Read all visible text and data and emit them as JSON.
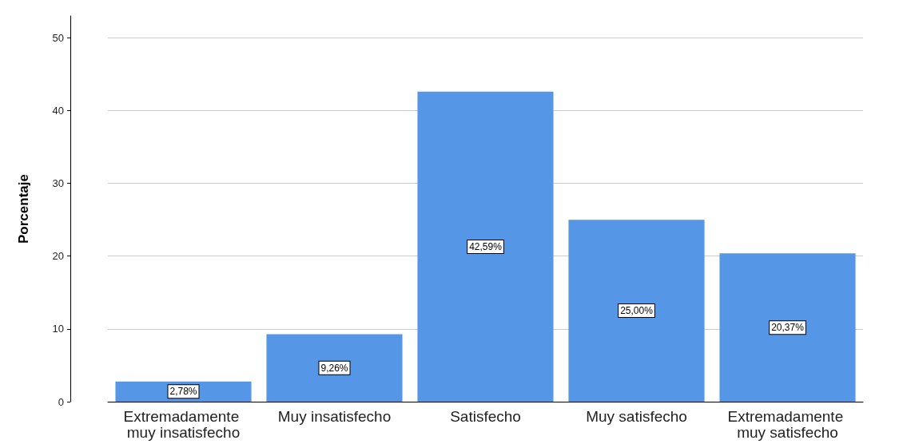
{
  "chart_data": {
    "type": "bar",
    "ylabel": "Porcentaje",
    "categories": [
      "Extremadamente muy insatisfecho",
      "Muy insatisfecho",
      "Satisfecho",
      "Muy satisfecho",
      "Extremadamente muy satisfecho"
    ],
    "values": [
      2.78,
      9.26,
      42.59,
      25.0,
      20.37
    ],
    "value_labels": [
      "2,78%",
      "9,26%",
      "42,59%",
      "25,00%",
      "20,37%"
    ],
    "color": "#5596e6",
    "ylim": [
      0,
      53
    ],
    "yticks": [
      0,
      10,
      20,
      30,
      40,
      50
    ],
    "grid": "y"
  }
}
